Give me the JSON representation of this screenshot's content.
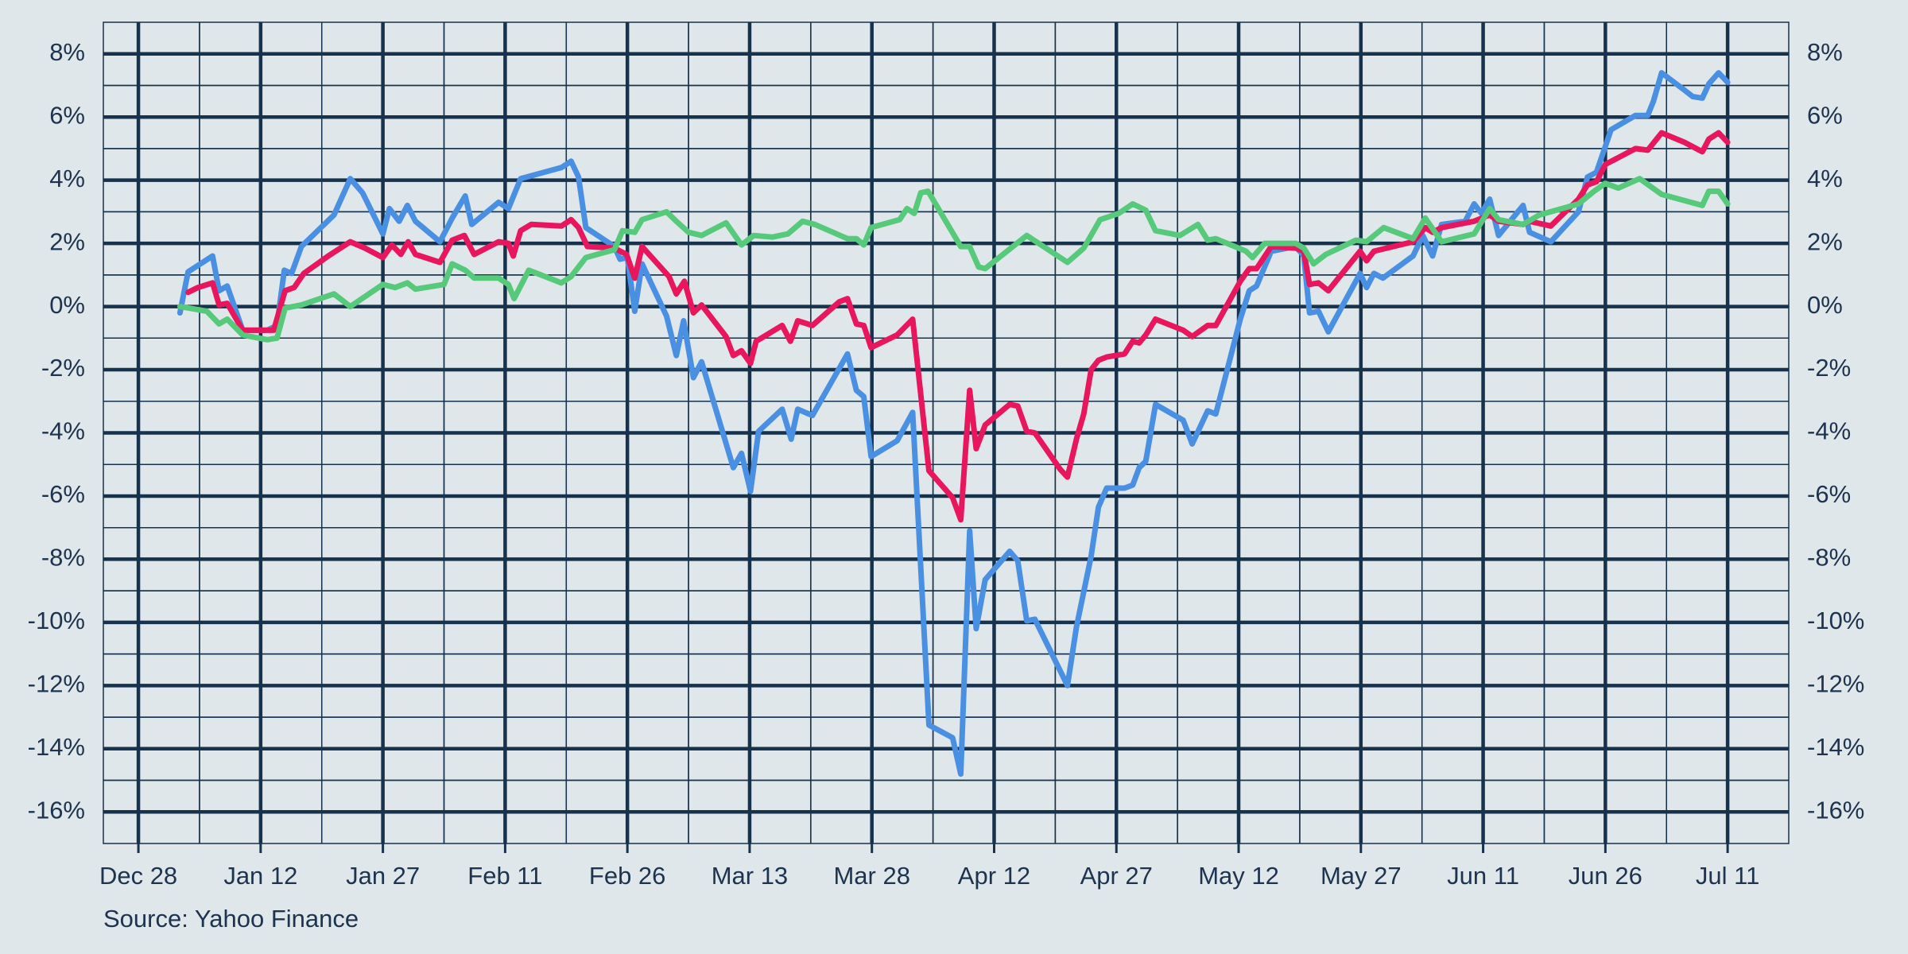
{
  "chart_data": {
    "type": "line",
    "source": "Source: Yahoo Finance",
    "xlim": [
      -4.3,
      202.5
    ],
    "ylim": [
      -17,
      9
    ],
    "xticks": [
      {
        "value": 0,
        "label": "Dec 28"
      },
      {
        "value": 15,
        "label": "Jan 12"
      },
      {
        "value": 30,
        "label": "Jan 27"
      },
      {
        "value": 45,
        "label": "Feb 11"
      },
      {
        "value": 60,
        "label": "Feb 26"
      },
      {
        "value": 75,
        "label": "Mar 13"
      },
      {
        "value": 90,
        "label": "Mar 28"
      },
      {
        "value": 105,
        "label": "Apr 12"
      },
      {
        "value": 120,
        "label": "Apr 27"
      },
      {
        "value": 135,
        "label": "May 12"
      },
      {
        "value": 150,
        "label": "May 27"
      },
      {
        "value": 165,
        "label": "Jun 11"
      },
      {
        "value": 180,
        "label": "Jun 26"
      },
      {
        "value": 195,
        "label": "Jul 11"
      }
    ],
    "yticks": [
      {
        "value": -16,
        "label": "-16%"
      },
      {
        "value": -14,
        "label": "-14%"
      },
      {
        "value": -12,
        "label": "-12%"
      },
      {
        "value": -10,
        "label": "-10%"
      },
      {
        "value": -8,
        "label": "-8%"
      },
      {
        "value": -6,
        "label": "-6%"
      },
      {
        "value": -4,
        "label": "-4%"
      },
      {
        "value": -2,
        "label": "-2%"
      },
      {
        "value": 0,
        "label": "0%"
      },
      {
        "value": 2,
        "label": "2%"
      },
      {
        "value": 4,
        "label": "4%"
      },
      {
        "value": 6,
        "label": "6%"
      },
      {
        "value": 8,
        "label": "8%"
      }
    ],
    "grid": true,
    "series": [
      {
        "color": "#4a90e2",
        "x": [
          5.1,
          6.1,
          9.1,
          9.9,
          10.9,
          12.8,
          15.8,
          17,
          17.9,
          18.8,
          20,
          24,
          26,
          27.5,
          30,
          30.8,
          32,
          33,
          34,
          37,
          38.5,
          40.1,
          40.9,
          44.2,
          45.4,
          46.9,
          51.9,
          53.1,
          54,
          54.9,
          58.4,
          59.1,
          60,
          60.9,
          61.8,
          64.8,
          66,
          66.9,
          68.1,
          69.1,
          73,
          74,
          75.1,
          76.1,
          79,
          80.1,
          80.9,
          82.7,
          87,
          88.1,
          89,
          89.9,
          93.1,
          95,
          97,
          99.9,
          100.9,
          102,
          102.8,
          103.9,
          106.9,
          107.9,
          109,
          110,
          114,
          115.1,
          116.9,
          117.8,
          118.8,
          121,
          122,
          122.8,
          123.6,
          124.8,
          128.2,
          129.3,
          131.2,
          132.2,
          135.2,
          136.3,
          137.2,
          139,
          142,
          143,
          143.7,
          144.8,
          146,
          149.9,
          150.7,
          151.6,
          152.7,
          156.4,
          157.6,
          158.8,
          159.9,
          162.8,
          163.9,
          164.8,
          165.8,
          166.9,
          169.9,
          170.7,
          173.3,
          176.7,
          177.8,
          178.9,
          180.7,
          183.7,
          185.2,
          185.9,
          186.9,
          189.7,
          190.7,
          191.9,
          192.7,
          193.9,
          195
        ],
        "values": [
          -0.2,
          1.1,
          1.6,
          0.5,
          0.65,
          -0.75,
          -0.75,
          -0.6,
          1.15,
          1.05,
          1.9,
          2.9,
          4.05,
          3.6,
          2.3,
          3.1,
          2.7,
          3.2,
          2.7,
          2.05,
          2.8,
          3.5,
          2.6,
          3.3,
          3.1,
          4.05,
          4.4,
          4.6,
          4.1,
          2.5,
          1.9,
          1.5,
          1.55,
          -0.15,
          1.35,
          -0.3,
          -1.55,
          -0.45,
          -2.25,
          -1.75,
          -5.1,
          -4.65,
          -5.85,
          -3.95,
          -3.25,
          -4.2,
          -3.25,
          -3.45,
          -1.5,
          -2.65,
          -2.85,
          -4.75,
          -4.25,
          -3.35,
          -13.25,
          -13.65,
          -14.8,
          -7.1,
          -10.2,
          -8.65,
          -7.75,
          -8.05,
          -9.95,
          -9.9,
          -12,
          -10.15,
          -7.9,
          -6.35,
          -5.75,
          -5.75,
          -5.65,
          -5.1,
          -4.9,
          -3.1,
          -3.6,
          -4.35,
          -3.3,
          -3.4,
          -0.4,
          0.5,
          0.65,
          1.75,
          1.9,
          1.6,
          -0.2,
          -0.15,
          -0.8,
          1.05,
          0.6,
          1.05,
          0.9,
          1.6,
          2.25,
          1.6,
          2.6,
          2.7,
          3.25,
          2.95,
          3.4,
          2.25,
          3.2,
          2.35,
          2.05,
          3.0,
          4.1,
          4.25,
          5.6,
          6.05,
          6.05,
          6.5,
          7.4,
          6.85,
          6.65,
          6.6,
          7.05,
          7.4,
          7.1
        ]
      },
      {
        "color": "#e8175d",
        "x": [
          6.1,
          7.3,
          9.1,
          9.9,
          10.9,
          12.8,
          16.6,
          18,
          19.1,
          20.3,
          23.3,
          26,
          27.8,
          30,
          31.1,
          32.2,
          33.1,
          34,
          37,
          38.5,
          40,
          41.2,
          44.2,
          45.4,
          46,
          46.9,
          48.2,
          51.9,
          53.1,
          54,
          55.1,
          58.4,
          59.9,
          60.9,
          61.8,
          65.1,
          66,
          67,
          68.1,
          69.1,
          72.1,
          73,
          74,
          75.1,
          75.8,
          79,
          80,
          80.9,
          82.7,
          86,
          87,
          88.1,
          89,
          89.9,
          93.1,
          95,
          97,
          99.9,
          100.9,
          102,
          102.8,
          103.9,
          106.9,
          107.9,
          109,
          110,
          113.1,
          114,
          115.1,
          116,
          116.9,
          117.8,
          118.8,
          121,
          122,
          122.8,
          123.6,
          124.8,
          128.2,
          129.3,
          131.2,
          132.2,
          135.2,
          136.3,
          137.2,
          139,
          142,
          143,
          143.7,
          144.8,
          146,
          149.9,
          150.7,
          151.6,
          156.4,
          157.9,
          158.8,
          159.9,
          163.9,
          165.8,
          166.9,
          169.9,
          170.7,
          173.3,
          176.7,
          177.8,
          178.9,
          180,
          183.7,
          185.2,
          186.9,
          189.7,
          191.9,
          192.7,
          193.9,
          195
        ],
        "values": [
          0.45,
          0.6,
          0.75,
          0.05,
          0.1,
          -0.75,
          -0.75,
          0.5,
          0.6,
          1.05,
          1.6,
          2.05,
          1.85,
          1.55,
          1.95,
          1.65,
          2.05,
          1.65,
          1.4,
          2.1,
          2.25,
          1.65,
          2.05,
          2.0,
          1.6,
          2.4,
          2.6,
          2.55,
          2.75,
          2.5,
          1.9,
          1.85,
          1.65,
          0.9,
          1.9,
          0.95,
          0.4,
          0.8,
          -0.2,
          0.05,
          -0.95,
          -1.55,
          -1.4,
          -1.8,
          -1.1,
          -0.6,
          -1.1,
          -0.45,
          -0.6,
          0.15,
          0.25,
          -0.55,
          -0.6,
          -1.3,
          -0.9,
          -0.4,
          -5.2,
          -6.05,
          -6.75,
          -2.65,
          -4.5,
          -3.75,
          -3.1,
          -3.15,
          -3.95,
          -4.0,
          -5.15,
          -5.4,
          -4.2,
          -3.4,
          -2,
          -1.7,
          -1.6,
          -1.5,
          -1.1,
          -1.15,
          -0.9,
          -0.4,
          -0.75,
          -0.95,
          -0.6,
          -0.6,
          0.8,
          1.2,
          1.2,
          1.9,
          1.85,
          1.75,
          0.7,
          0.75,
          0.5,
          1.75,
          1.45,
          1.75,
          2.05,
          2.5,
          2.35,
          2.5,
          2.7,
          2.9,
          2.7,
          2.6,
          2.7,
          2.55,
          3.4,
          3.85,
          3.95,
          4.5,
          5.0,
          4.95,
          5.5,
          5.2,
          4.9,
          5.3,
          5.5,
          5.2
        ]
      },
      {
        "color": "#56c97a",
        "x": [
          5.1,
          8.4,
          9.9,
          10.9,
          12.8,
          15.8,
          17,
          18,
          20,
          24,
          26,
          30,
          31.5,
          33,
          34,
          37.5,
          38.5,
          40.1,
          41.2,
          44.2,
          45.4,
          46.1,
          47.9,
          51.9,
          53.1,
          54.9,
          58.4,
          59.4,
          60.9,
          61.8,
          64.8,
          66,
          67.5,
          69.1,
          72.1,
          74,
          75.5,
          77.8,
          79.7,
          81.5,
          83,
          87,
          88.1,
          89,
          89.9,
          93.4,
          94.3,
          95.2,
          96,
          96.9,
          100.9,
          102,
          103.1,
          103.9,
          109,
          114,
          116,
          118,
          120.3,
          122,
          123.6,
          124.8,
          127.8,
          130,
          131.2,
          132.2,
          135.9,
          136.7,
          138.2,
          142,
          143,
          144.2,
          145.7,
          149.4,
          150.7,
          152.8,
          156.4,
          157.9,
          159.9,
          163.9,
          165.8,
          166.9,
          169.9,
          171.9,
          176.7,
          178.6,
          180,
          181.6,
          184.2,
          186.9,
          191.9,
          192.7,
          193.9,
          195
        ],
        "values": [
          0,
          -0.15,
          -0.55,
          -0.4,
          -0.9,
          -1.05,
          -1.0,
          -0.05,
          0.05,
          0.4,
          0,
          0.7,
          0.6,
          0.75,
          0.55,
          0.7,
          1.35,
          1.15,
          0.9,
          0.9,
          0.7,
          0.25,
          1.15,
          0.75,
          0.95,
          1.55,
          1.8,
          2.4,
          2.35,
          2.75,
          3.0,
          2.7,
          2.35,
          2.25,
          2.65,
          1.95,
          2.25,
          2.2,
          2.3,
          2.7,
          2.6,
          2.15,
          2.15,
          1.95,
          2.5,
          2.75,
          3.1,
          2.95,
          3.6,
          3.65,
          1.9,
          1.9,
          1.25,
          1.2,
          2.25,
          1.4,
          1.85,
          2.75,
          2.95,
          3.25,
          3.05,
          2.4,
          2.25,
          2.6,
          2.1,
          2.15,
          1.75,
          1.55,
          2.0,
          2.0,
          1.85,
          1.35,
          1.65,
          2.1,
          2.05,
          2.5,
          2.15,
          2.8,
          2.05,
          2.3,
          3.1,
          2.75,
          2.6,
          2.9,
          3.25,
          3.65,
          3.9,
          3.75,
          4.05,
          3.55,
          3.2,
          3.65,
          3.65,
          3.25
        ]
      }
    ]
  }
}
